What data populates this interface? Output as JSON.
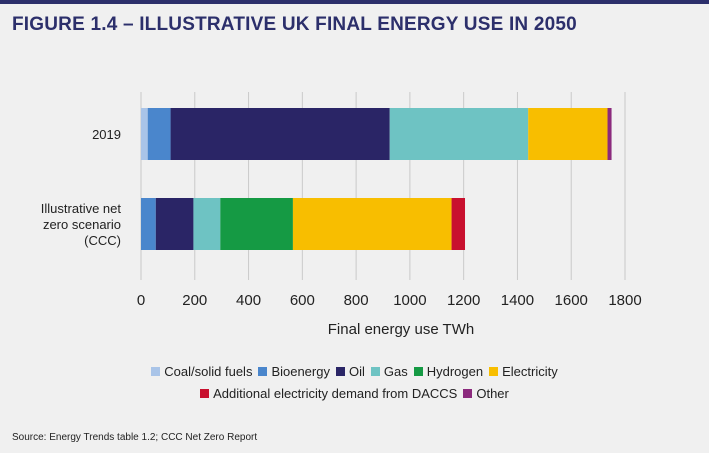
{
  "title": "FIGURE 1.4 – ILLUSTRATIVE UK FINAL ENERGY USE IN 2050",
  "source": "Source: Energy Trends table 1.2; CCC Net Zero Report",
  "chart_data": {
    "type": "bar",
    "orientation": "horizontal",
    "stacked": true,
    "categories": [
      "2019",
      "Illustrative net zero scenario (CCC)"
    ],
    "category_label_lines": [
      [
        "2019"
      ],
      [
        "Illustrative net",
        "zero scenario",
        "(CCC)"
      ]
    ],
    "series": [
      {
        "name": "Coal/solid fuels",
        "color": "#a9c4e8",
        "values": [
          25,
          0
        ]
      },
      {
        "name": "Bioenergy",
        "color": "#4a86cc",
        "values": [
          85,
          55
        ]
      },
      {
        "name": "Oil",
        "color": "#2a2566",
        "values": [
          815,
          140
        ]
      },
      {
        "name": "Gas",
        "color": "#6ec3c3",
        "values": [
          515,
          100
        ]
      },
      {
        "name": "Hydrogen",
        "color": "#159a44",
        "values": [
          0,
          270
        ]
      },
      {
        "name": "Electricity",
        "color": "#f8be00",
        "values": [
          295,
          590
        ]
      },
      {
        "name": "Additional electricity demand from DACCS",
        "color": "#c8102e",
        "values": [
          0,
          50
        ]
      },
      {
        "name": "Other",
        "color": "#8b2a7d",
        "values": [
          15,
          0
        ]
      }
    ],
    "xlabel": "Final energy use TWh",
    "xlim": [
      0,
      1800
    ],
    "xticks": [
      0,
      200,
      400,
      600,
      800,
      1000,
      1200,
      1400,
      1600,
      1800
    ],
    "grid": true,
    "legend_position": "bottom"
  },
  "legend_rows": [
    [
      0,
      1,
      2,
      3,
      4,
      5
    ],
    [
      6,
      7
    ]
  ]
}
